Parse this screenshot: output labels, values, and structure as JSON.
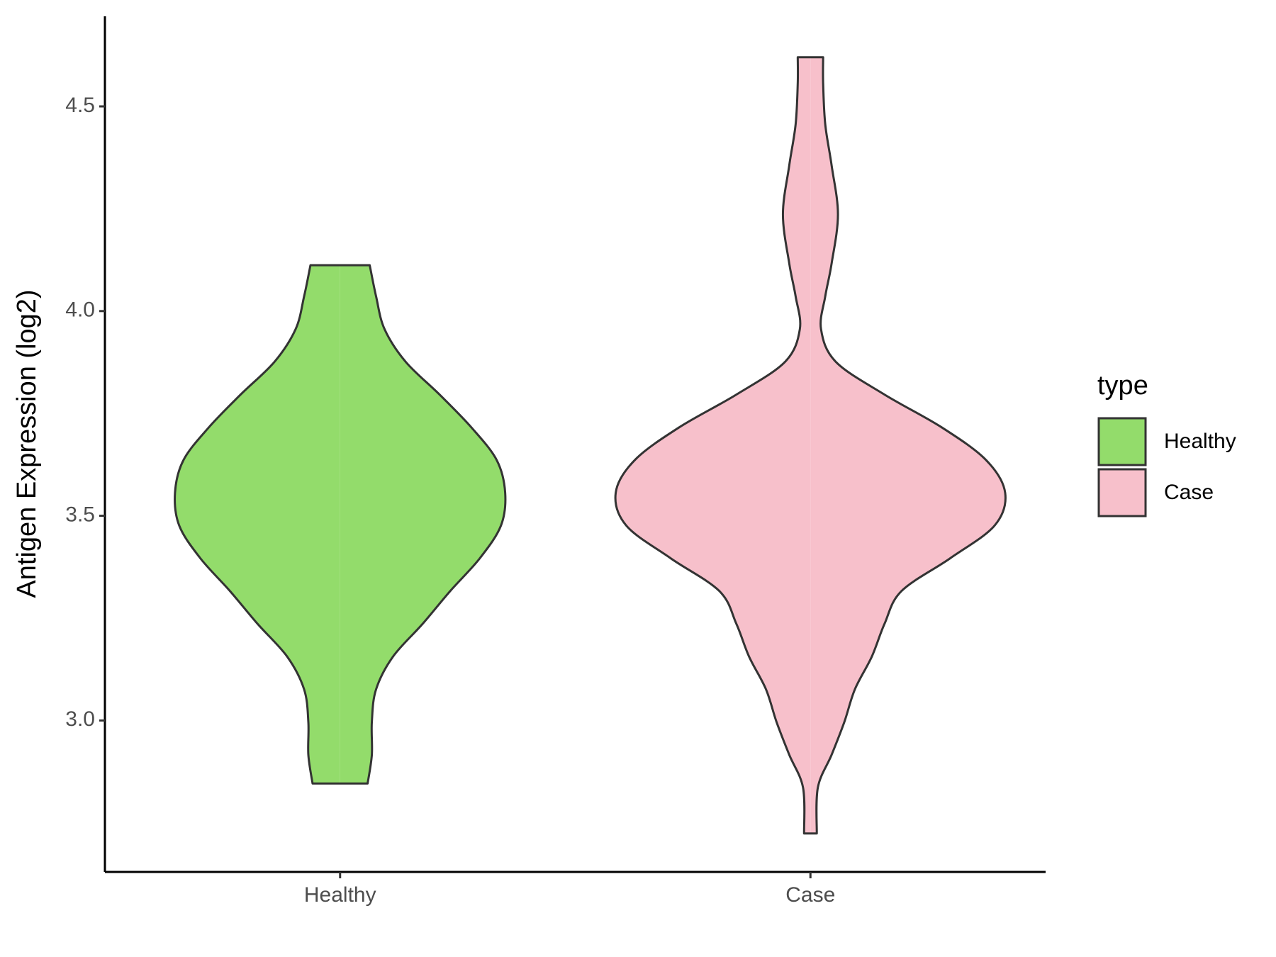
{
  "chart_data": {
    "type": "violin",
    "y_label": "Antigen Expression (log2)",
    "categories": [
      "Healthy",
      "Case"
    ],
    "legend_title": "type",
    "legend": "right",
    "ylim": [
      2.63,
      4.72
    ],
    "yticks": [
      {
        "value": 3,
        "label": "3.0"
      },
      3.5,
      {
        "value": 4,
        "label": "4.0"
      },
      4.5
    ],
    "series": [
      {
        "name": "Healthy",
        "color": "#93dc6b",
        "y": [
          4.112,
          4.036,
          3.956,
          3.876,
          3.796,
          3.716,
          3.636,
          3.556,
          3.476,
          3.396,
          3.316,
          3.236,
          3.156,
          3.076,
          2.996,
          2.916,
          2.846
        ],
        "density": [
          0.14,
          0.17,
          0.21,
          0.31,
          0.47,
          0.62,
          0.74,
          0.78,
          0.76,
          0.66,
          0.52,
          0.39,
          0.25,
          0.17,
          0.15,
          0.15,
          0.13
        ]
      },
      {
        "name": "Case",
        "color": "#f7c0cb",
        "y": [
          4.62,
          4.556,
          4.456,
          4.356,
          4.236,
          4.116,
          4.036,
          3.956,
          3.876,
          3.796,
          3.716,
          3.636,
          3.556,
          3.476,
          3.396,
          3.316,
          3.236,
          3.156,
          3.076,
          2.996,
          2.916,
          2.836,
          2.724
        ],
        "density": [
          0.06,
          0.06,
          0.07,
          0.1,
          0.13,
          0.1,
          0.07,
          0.05,
          0.12,
          0.35,
          0.62,
          0.83,
          0.92,
          0.87,
          0.66,
          0.43,
          0.35,
          0.29,
          0.21,
          0.16,
          0.1,
          0.035,
          0.03
        ]
      }
    ]
  }
}
